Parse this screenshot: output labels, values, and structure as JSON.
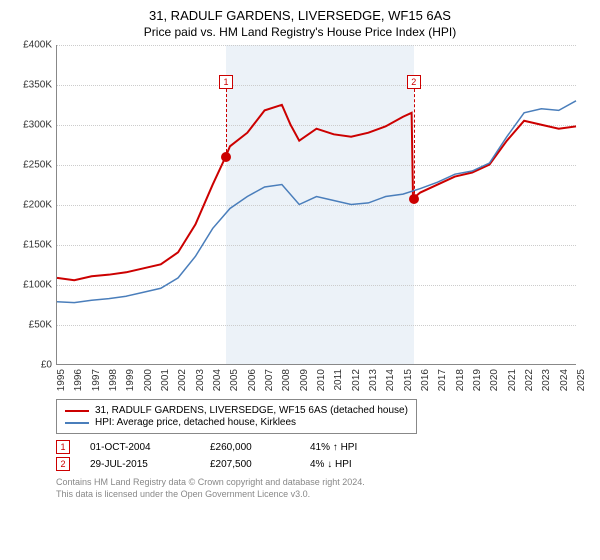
{
  "title": "31, RADULF GARDENS, LIVERSEDGE, WF15 6AS",
  "subtitle": "Price paid vs. HM Land Registry's House Price Index (HPI)",
  "chart": {
    "type": "line",
    "ylim": [
      0,
      400000
    ],
    "ytick_step": 50000,
    "yticks": [
      "£0",
      "£50K",
      "£100K",
      "£150K",
      "£200K",
      "£250K",
      "£300K",
      "£350K",
      "£400K"
    ],
    "xlim": [
      1995,
      2025
    ],
    "xticks": [
      "1995",
      "1996",
      "1997",
      "1998",
      "1999",
      "2000",
      "2001",
      "2002",
      "2003",
      "2004",
      "2005",
      "2006",
      "2007",
      "2008",
      "2009",
      "2010",
      "2011",
      "2012",
      "2013",
      "2014",
      "2015",
      "2016",
      "2017",
      "2018",
      "2019",
      "2020",
      "2021",
      "2022",
      "2023",
      "2024",
      "2025"
    ],
    "band_start": 2004.75,
    "band_end": 2015.58,
    "grid_color": "#cccccc",
    "background_color": "#ffffff",
    "band_color": "#ecf2f8",
    "series": [
      {
        "name": "property",
        "label": "31, RADULF GARDENS, LIVERSEDGE, WF15 6AS (detached house)",
        "color": "#cc0000",
        "width": 2,
        "data": [
          [
            1995,
            108000
          ],
          [
            1996,
            105000
          ],
          [
            1997,
            110000
          ],
          [
            1998,
            112000
          ],
          [
            1999,
            115000
          ],
          [
            2000,
            120000
          ],
          [
            2001,
            125000
          ],
          [
            2002,
            140000
          ],
          [
            2003,
            175000
          ],
          [
            2004,
            225000
          ],
          [
            2004.75,
            260000
          ],
          [
            2005,
            273000
          ],
          [
            2006,
            290000
          ],
          [
            2007,
            318000
          ],
          [
            2008,
            325000
          ],
          [
            2008.5,
            300000
          ],
          [
            2009,
            280000
          ],
          [
            2010,
            295000
          ],
          [
            2011,
            288000
          ],
          [
            2012,
            285000
          ],
          [
            2013,
            290000
          ],
          [
            2014,
            298000
          ],
          [
            2015,
            310000
          ],
          [
            2015.5,
            315000
          ],
          [
            2015.58,
            207500
          ],
          [
            2016,
            215000
          ],
          [
            2017,
            225000
          ],
          [
            2018,
            235000
          ],
          [
            2019,
            240000
          ],
          [
            2020,
            250000
          ],
          [
            2021,
            280000
          ],
          [
            2022,
            305000
          ],
          [
            2023,
            300000
          ],
          [
            2024,
            295000
          ],
          [
            2025,
            298000
          ]
        ]
      },
      {
        "name": "hpi",
        "label": "HPI: Average price, detached house, Kirklees",
        "color": "#4a7ebb",
        "width": 1.5,
        "data": [
          [
            1995,
            78000
          ],
          [
            1996,
            77000
          ],
          [
            1997,
            80000
          ],
          [
            1998,
            82000
          ],
          [
            1999,
            85000
          ],
          [
            2000,
            90000
          ],
          [
            2001,
            95000
          ],
          [
            2002,
            108000
          ],
          [
            2003,
            135000
          ],
          [
            2004,
            170000
          ],
          [
            2005,
            195000
          ],
          [
            2006,
            210000
          ],
          [
            2007,
            222000
          ],
          [
            2008,
            225000
          ],
          [
            2009,
            200000
          ],
          [
            2010,
            210000
          ],
          [
            2011,
            205000
          ],
          [
            2012,
            200000
          ],
          [
            2013,
            202000
          ],
          [
            2014,
            210000
          ],
          [
            2015,
            213000
          ],
          [
            2016,
            220000
          ],
          [
            2017,
            228000
          ],
          [
            2018,
            238000
          ],
          [
            2019,
            242000
          ],
          [
            2020,
            252000
          ],
          [
            2021,
            285000
          ],
          [
            2022,
            315000
          ],
          [
            2023,
            320000
          ],
          [
            2024,
            318000
          ],
          [
            2025,
            330000
          ]
        ]
      }
    ],
    "markers": [
      {
        "n": "1",
        "x": 2004.75,
        "y": 260000,
        "box_top": 30
      },
      {
        "n": "2",
        "x": 2015.58,
        "y": 207500,
        "box_top": 30
      }
    ]
  },
  "legend": {
    "items": [
      {
        "color": "#cc0000",
        "label": "31, RADULF GARDENS, LIVERSEDGE, WF15 6AS (detached house)"
      },
      {
        "color": "#4a7ebb",
        "label": "HPI: Average price, detached house, Kirklees"
      }
    ]
  },
  "sales": [
    {
      "n": "1",
      "date": "01-OCT-2004",
      "price": "£260,000",
      "diff": "41% ↑ HPI"
    },
    {
      "n": "2",
      "date": "29-JUL-2015",
      "price": "£207,500",
      "diff": "4% ↓ HPI"
    }
  ],
  "footer": {
    "line1": "Contains HM Land Registry data © Crown copyright and database right 2024.",
    "line2": "This data is licensed under the Open Government Licence v3.0."
  }
}
